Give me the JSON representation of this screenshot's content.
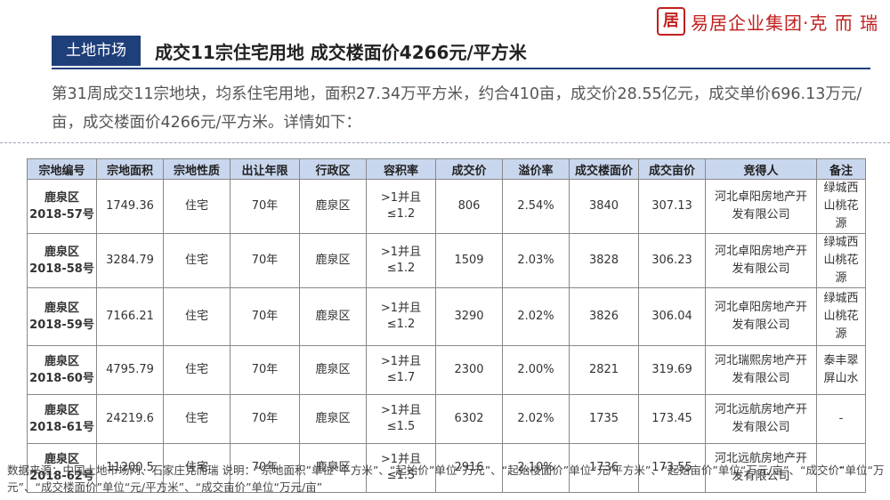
{
  "brand": {
    "logo_char": "居",
    "name": "易居企业集团·克 而 瑞"
  },
  "header": {
    "tag": "土地市场",
    "title": "成交11宗住宅用地 成交楼面价4266元/平方米"
  },
  "summary": "第31周成交11宗地块，均系住宅用地，面积27.34万平方米，约合410亩，成交价28.55亿元，成交单价696.13万元/亩，成交楼面价4266元/平方米。详情如下：",
  "table": {
    "columns": [
      "宗地编号",
      "宗地面积",
      "宗地性质",
      "出让年限",
      "行政区",
      "容积率",
      "成交价",
      "溢价率",
      "成交楼面价",
      "成交亩价",
      "竞得人",
      "备注"
    ],
    "rows": [
      {
        "plot": "鹿泉区",
        "plot2": "2018-57号",
        "area": "1749.36",
        "type": "住宅",
        "term": "70年",
        "district": "鹿泉区",
        "far": ">1并且≤1.2",
        "price": "806",
        "premium": "2.54%",
        "floor_price": "3840",
        "mu_price": "307.13",
        "winner": "河北卓阳房地产开发有限公司",
        "note": "绿城西山桃花源"
      },
      {
        "plot": "鹿泉区",
        "plot2": "2018-58号",
        "area": "3284.79",
        "type": "住宅",
        "term": "70年",
        "district": "鹿泉区",
        "far": ">1并且≤1.2",
        "price": "1509",
        "premium": "2.03%",
        "floor_price": "3828",
        "mu_price": "306.23",
        "winner": "河北卓阳房地产开发有限公司",
        "note": "绿城西山桃花源"
      },
      {
        "plot": "鹿泉区",
        "plot2": "2018-59号",
        "area": "7166.21",
        "type": "住宅",
        "term": "70年",
        "district": "鹿泉区",
        "far": ">1并且≤1.2",
        "price": "3290",
        "premium": "2.02%",
        "floor_price": "3826",
        "mu_price": "306.04",
        "winner": "河北卓阳房地产开发有限公司",
        "note": "绿城西山桃花源"
      },
      {
        "plot": "鹿泉区",
        "plot2": "2018-60号",
        "area": "4795.79",
        "type": "住宅",
        "term": "70年",
        "district": "鹿泉区",
        "far": ">1并且≤1.7",
        "price": "2300",
        "premium": "2.00%",
        "floor_price": "2821",
        "mu_price": "319.69",
        "winner": "河北瑞熙房地产开发有限公司",
        "note": "泰丰翠屏山水"
      },
      {
        "plot": "鹿泉区",
        "plot2": "2018-61号",
        "area": "24219.6",
        "type": "住宅",
        "term": "70年",
        "district": "鹿泉区",
        "far": ">1并且≤1.5",
        "price": "6302",
        "premium": "2.02%",
        "floor_price": "1735",
        "mu_price": "173.45",
        "winner": "河北远航房地产开发有限公司",
        "note": "-"
      },
      {
        "plot": "鹿泉区",
        "plot2": "2018-62号",
        "area": "11200.5",
        "type": "住宅",
        "term": "70年",
        "district": "鹿泉区",
        "far": ">1并且≤1.5",
        "price": "2916",
        "premium": "2.10%",
        "floor_price": "1736",
        "mu_price": "173.55",
        "winner": "河北远航房地产开发有限公司",
        "note": "-"
      }
    ]
  },
  "footnote": "数据来源：中国土地市场网、石家庄克而瑞 说明：“宗地面积”单位“平方米”、“起始价”单位“万元”、“起始楼面价”单位“元/平方米”、“起始亩价”单位“万元/亩”、“成交价”单位“万元”、“成交楼面价”单位“元/平方米”、“成交亩价”单位“万元/亩”",
  "colors": {
    "accent": "#1f3f7a",
    "brand": "#c21f1f",
    "header_fill": "#c9d7ee"
  }
}
